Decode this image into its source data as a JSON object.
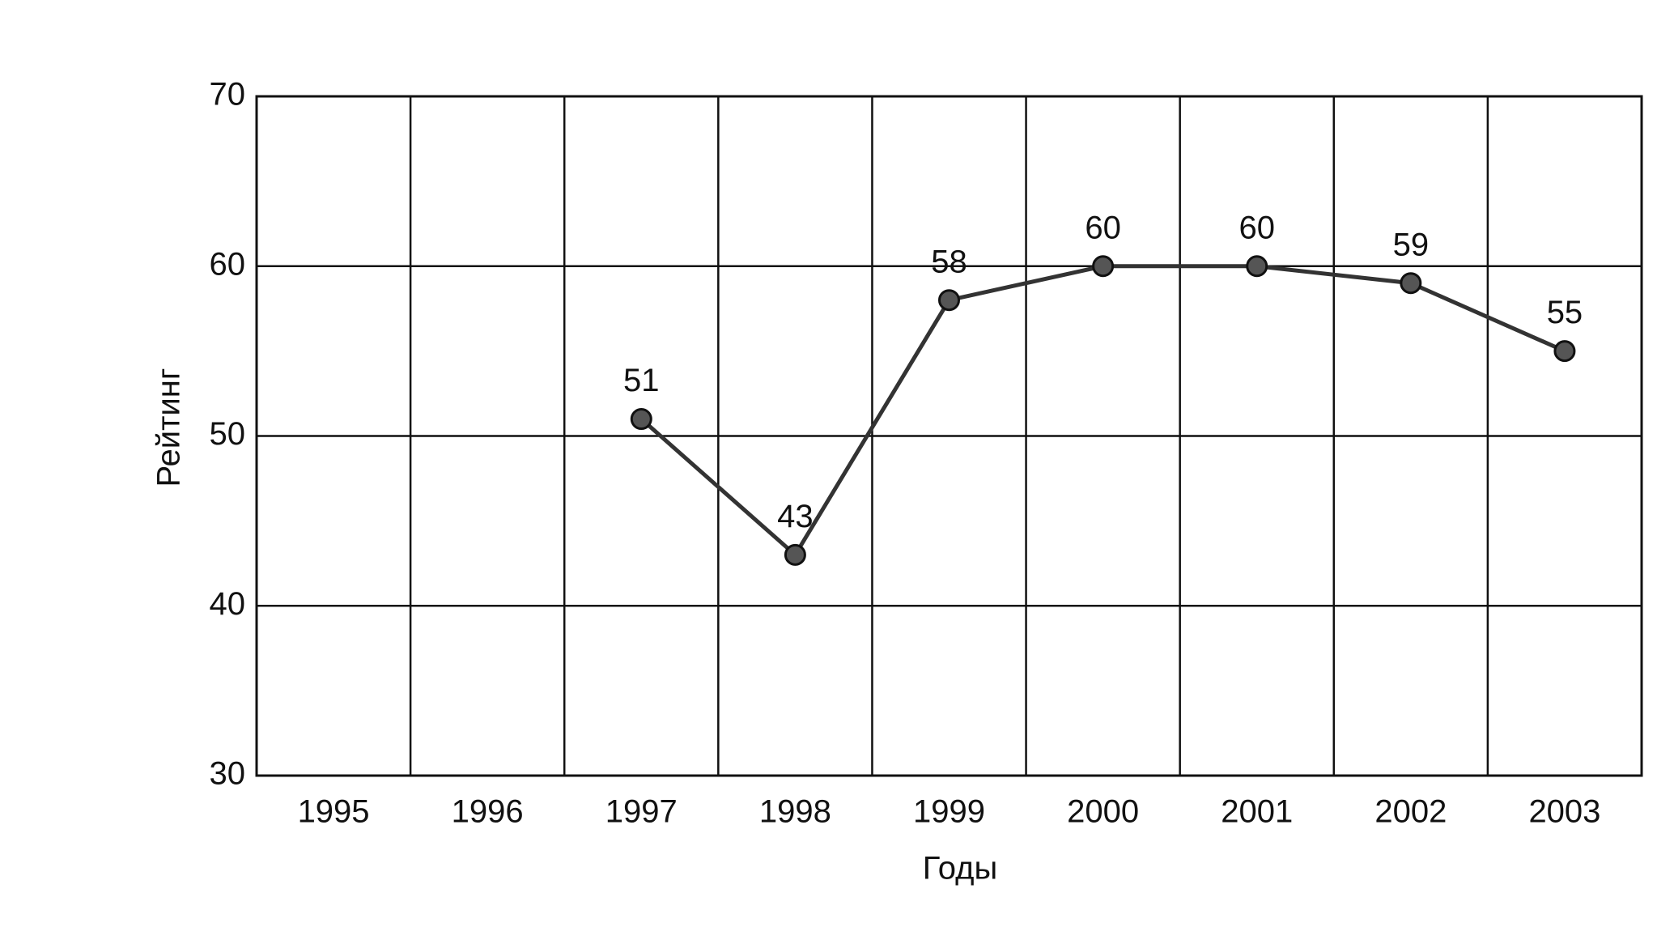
{
  "chart_data": {
    "type": "line",
    "x_label": "Годы",
    "y_label": "Рейтинг",
    "categories": [
      "1995",
      "1996",
      "1997",
      "1998",
      "1999",
      "2000",
      "2001",
      "2002",
      "2003"
    ],
    "values": [
      null,
      null,
      51,
      43,
      58,
      60,
      60,
      59,
      55
    ],
    "color": "#333333",
    "ylim": [
      30,
      70
    ],
    "yticks": [
      30,
      40,
      50,
      60,
      70
    ],
    "grid": true
  }
}
